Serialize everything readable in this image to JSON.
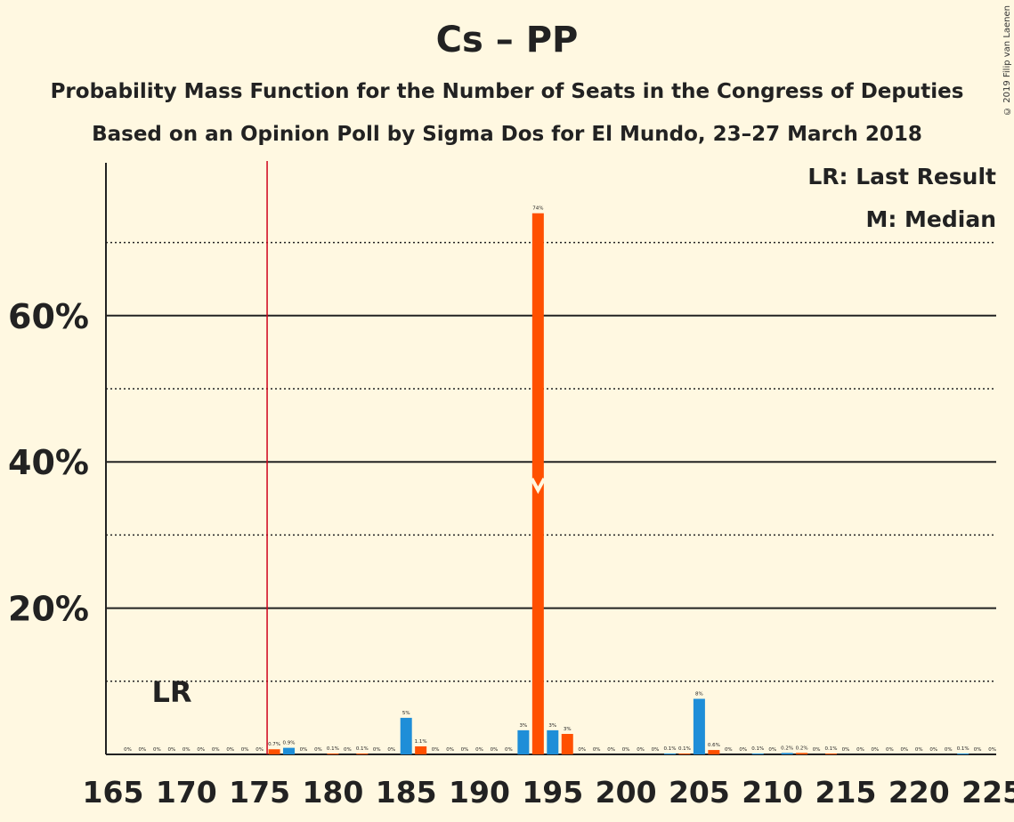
{
  "title": "Cs – PP",
  "subtitle1": "Probability Mass Function for the Number of Seats in the Congress of Deputies",
  "subtitle2": "Based on an Opinion Poll by Sigma Dos for El Mundo, 23–27 March 2018",
  "legend_lr": "LR: Last Result",
  "legend_m": "M: Median",
  "copyright": "© 2019 Filip van Laenen",
  "colors": {
    "background": "#FFF8E1",
    "blue": "#1E8ED8",
    "orange": "#FF5000",
    "last_result_line": "#D0021B"
  },
  "chart_data": {
    "type": "bar",
    "title": "Cs – PP",
    "xlabel": "",
    "ylabel": "",
    "xlim": [
      165,
      225
    ],
    "ylim": [
      0,
      80
    ],
    "x_ticks": [
      165,
      170,
      175,
      180,
      185,
      190,
      195,
      200,
      205,
      210,
      215,
      220,
      225
    ],
    "y_ticks_solid": [
      {
        "value": 20,
        "label": "20%"
      },
      {
        "value": 40,
        "label": "40%"
      },
      {
        "value": 60,
        "label": "60%"
      }
    ],
    "y_ticks_dotted": [
      10,
      30,
      50,
      70
    ],
    "last_result": 176,
    "last_result_label": "LR",
    "median": 194,
    "bars": [
      {
        "x": 166,
        "value": 0,
        "label": "0%"
      },
      {
        "x": 167,
        "value": 0,
        "label": "0%"
      },
      {
        "x": 168,
        "value": 0,
        "label": "0%"
      },
      {
        "x": 169,
        "value": 0,
        "label": "0%"
      },
      {
        "x": 170,
        "value": 0,
        "label": "0%"
      },
      {
        "x": 171,
        "value": 0,
        "label": "0%"
      },
      {
        "x": 172,
        "value": 0,
        "label": "0%"
      },
      {
        "x": 173,
        "value": 0,
        "label": "0%"
      },
      {
        "x": 174,
        "value": 0,
        "label": "0%"
      },
      {
        "x": 175,
        "value": 0,
        "label": "0%"
      },
      {
        "x": 176,
        "value": 0.7,
        "label": "0.7%"
      },
      {
        "x": 177,
        "value": 0.9,
        "label": "0.9%"
      },
      {
        "x": 178,
        "value": 0,
        "label": "0%"
      },
      {
        "x": 179,
        "value": 0,
        "label": "0%"
      },
      {
        "x": 180,
        "value": 0.1,
        "label": "0.1%"
      },
      {
        "x": 181,
        "value": 0,
        "label": "0%"
      },
      {
        "x": 182,
        "value": 0.1,
        "label": "0.1%"
      },
      {
        "x": 183,
        "value": 0,
        "label": "0%"
      },
      {
        "x": 184,
        "value": 0,
        "label": "0%"
      },
      {
        "x": 185,
        "value": 5,
        "label": "5%"
      },
      {
        "x": 186,
        "value": 1.1,
        "label": "1.1%"
      },
      {
        "x": 187,
        "value": 0,
        "label": "0%"
      },
      {
        "x": 188,
        "value": 0,
        "label": "0%"
      },
      {
        "x": 189,
        "value": 0,
        "label": "0%"
      },
      {
        "x": 190,
        "value": 0,
        "label": "0%"
      },
      {
        "x": 191,
        "value": 0,
        "label": "0%"
      },
      {
        "x": 192,
        "value": 0,
        "label": "0%"
      },
      {
        "x": 193,
        "value": 3.3,
        "label": "3%"
      },
      {
        "x": 194,
        "value": 74,
        "label": "74%"
      },
      {
        "x": 195,
        "value": 3.3,
        "label": "3%"
      },
      {
        "x": 196,
        "value": 2.8,
        "label": "3%"
      },
      {
        "x": 197,
        "value": 0,
        "label": "0%"
      },
      {
        "x": 198,
        "value": 0,
        "label": "0%"
      },
      {
        "x": 199,
        "value": 0,
        "label": "0%"
      },
      {
        "x": 200,
        "value": 0,
        "label": "0%"
      },
      {
        "x": 201,
        "value": 0,
        "label": "0%"
      },
      {
        "x": 202,
        "value": 0,
        "label": "0%"
      },
      {
        "x": 203,
        "value": 0.1,
        "label": "0.1%"
      },
      {
        "x": 204,
        "value": 0.1,
        "label": "0.1%"
      },
      {
        "x": 205,
        "value": 7.6,
        "label": "8%"
      },
      {
        "x": 206,
        "value": 0.6,
        "label": "0.6%"
      },
      {
        "x": 207,
        "value": 0,
        "label": "0%"
      },
      {
        "x": 208,
        "value": 0,
        "label": "0%"
      },
      {
        "x": 209,
        "value": 0.1,
        "label": "0.1%"
      },
      {
        "x": 210,
        "value": 0,
        "label": "0%"
      },
      {
        "x": 211,
        "value": 0.2,
        "label": "0.2%"
      },
      {
        "x": 212,
        "value": 0.2,
        "label": "0.2%"
      },
      {
        "x": 213,
        "value": 0,
        "label": "0%"
      },
      {
        "x": 214,
        "value": 0.1,
        "label": "0.1%"
      },
      {
        "x": 215,
        "value": 0,
        "label": "0%"
      },
      {
        "x": 216,
        "value": 0,
        "label": "0%"
      },
      {
        "x": 217,
        "value": 0,
        "label": "0%"
      },
      {
        "x": 218,
        "value": 0,
        "label": "0%"
      },
      {
        "x": 219,
        "value": 0,
        "label": "0%"
      },
      {
        "x": 220,
        "value": 0,
        "label": "0%"
      },
      {
        "x": 221,
        "value": 0,
        "label": "0%"
      },
      {
        "x": 222,
        "value": 0,
        "label": "0%"
      },
      {
        "x": 223,
        "value": 0.1,
        "label": "0.1%"
      },
      {
        "x": 224,
        "value": 0,
        "label": "0%"
      },
      {
        "x": 225,
        "value": 0,
        "label": "0%"
      }
    ]
  }
}
